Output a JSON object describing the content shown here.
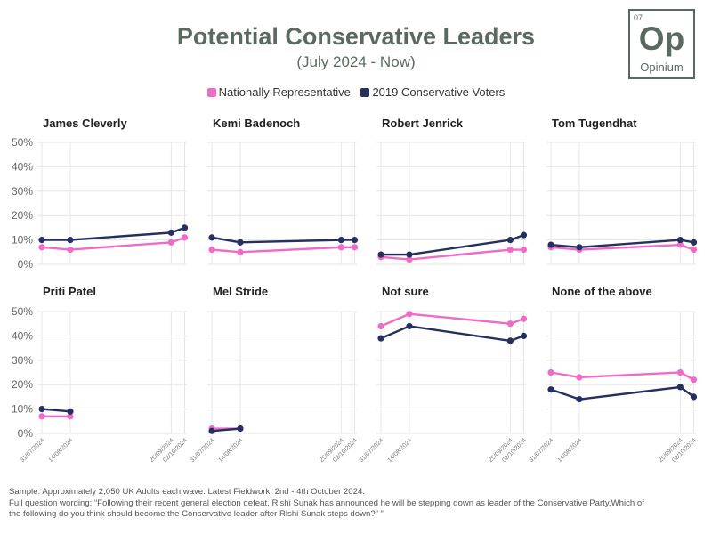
{
  "title": "Potential Conservative Leaders",
  "subtitle": "(July 2024 - Now)",
  "logo": {
    "number": "07",
    "symbol": "Op",
    "name": "Opinium"
  },
  "colors": {
    "nationally_representative": "#f06ac8",
    "conservative_voters": "#253061",
    "grid": "#e6e6e6",
    "text": "#5a6a60"
  },
  "footer": {
    "sample": "Sample: Approximately 2,050 UK Adults each wave. Latest Fieldwork: 2nd - 4th October 2024.",
    "wording_1": "Full question wording: “Following their recent general election defeat, Rishi Sunak has announced he will be stepping down as leader of the Conservative Party.Which of",
    "wording_2": "the following do you think should become the Conservative leader after Rishi Sunak steps down?” ”"
  },
  "chart_data": {
    "type": "line",
    "legend": [
      "Nationally Representative",
      "2019 Conservative Voters"
    ],
    "legend_position": "top-center",
    "x": [
      "31/07/2024",
      "14/08/2024",
      "25/09/2024",
      "02/10/2024"
    ],
    "y_ticks": [
      "0%",
      "10%",
      "20%",
      "30%",
      "40%",
      "50%"
    ],
    "ylim": [
      0,
      50
    ],
    "grid": true,
    "panels": [
      {
        "title": "James Cleverly",
        "series": [
          {
            "name": "Nationally Representative",
            "values": [
              7,
              6,
              9,
              11
            ]
          },
          {
            "name": "2019 Conservative Voters",
            "values": [
              10,
              10,
              13,
              15
            ]
          }
        ]
      },
      {
        "title": "Kemi Badenoch",
        "series": [
          {
            "name": "Nationally Representative",
            "values": [
              6,
              5,
              7,
              7
            ]
          },
          {
            "name": "2019 Conservative Voters",
            "values": [
              11,
              9,
              10,
              10
            ]
          }
        ]
      },
      {
        "title": "Robert Jenrick",
        "series": [
          {
            "name": "Nationally Representative",
            "values": [
              3,
              2,
              6,
              6
            ]
          },
          {
            "name": "2019 Conservative Voters",
            "values": [
              4,
              4,
              10,
              12
            ]
          }
        ]
      },
      {
        "title": "Tom Tugendhat",
        "series": [
          {
            "name": "Nationally Representative",
            "values": [
              7,
              6,
              8,
              6
            ]
          },
          {
            "name": "2019 Conservative Voters",
            "values": [
              8,
              7,
              10,
              9
            ]
          }
        ]
      },
      {
        "title": "Priti Patel",
        "series": [
          {
            "name": "Nationally Representative",
            "values": [
              7,
              7,
              null,
              null
            ]
          },
          {
            "name": "2019 Conservative Voters",
            "values": [
              10,
              9,
              null,
              null
            ]
          }
        ]
      },
      {
        "title": "Mel Stride",
        "series": [
          {
            "name": "Nationally Representative",
            "values": [
              2,
              2,
              null,
              null
            ]
          },
          {
            "name": "2019 Conservative Voters",
            "values": [
              1,
              2,
              null,
              null
            ]
          }
        ]
      },
      {
        "title": "Not sure",
        "series": [
          {
            "name": "Nationally Representative",
            "values": [
              44,
              49,
              45,
              47
            ]
          },
          {
            "name": "2019 Conservative Voters",
            "values": [
              39,
              44,
              38,
              40
            ]
          }
        ]
      },
      {
        "title": "None of the above",
        "series": [
          {
            "name": "Nationally Representative",
            "values": [
              25,
              23,
              25,
              22
            ]
          },
          {
            "name": "2019 Conservative Voters",
            "values": [
              18,
              14,
              19,
              15
            ]
          }
        ]
      }
    ]
  }
}
